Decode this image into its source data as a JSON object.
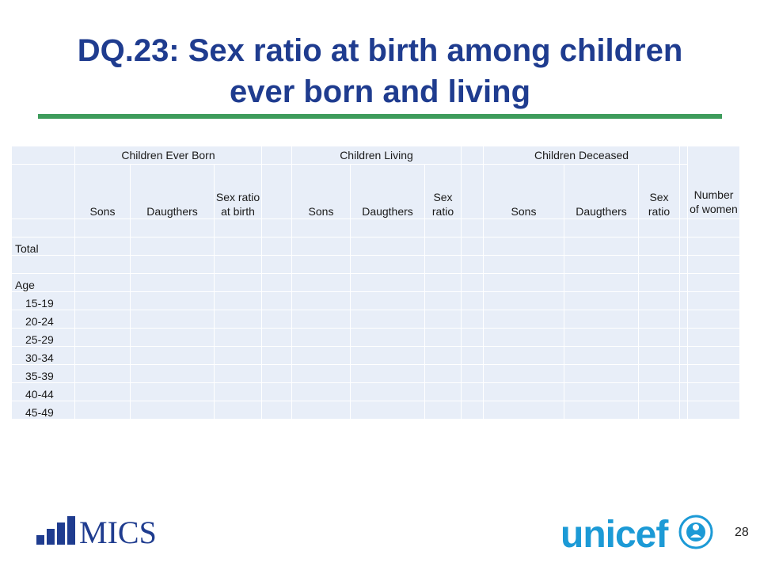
{
  "title": {
    "line1": "DQ.23: Sex ratio at birth among children",
    "line2": "ever born and living"
  },
  "table": {
    "groups": {
      "ever_born": "Children Ever Born",
      "living": "Children Living",
      "deceased": "Children Deceased"
    },
    "subheaders": {
      "sons": "Sons",
      "daughters": "Daugthers",
      "ratio_birth": "Sex ratio at birth",
      "ratio": "Sex ratio",
      "women": "Number of women"
    },
    "rows": {
      "total": "Total",
      "age": "Age",
      "ages": [
        "15-19",
        "20-24",
        "25-29",
        "30-34",
        "35-39",
        "40-44",
        "45-49"
      ]
    }
  },
  "footer": {
    "mics_logo": "MICS",
    "unicef_logo": "unicef",
    "page_number": "28"
  },
  "colors": {
    "title": "#1f3c8f",
    "rule": "#3e9c5c",
    "cell": "#e8eef8",
    "unicef": "#1c9ad6",
    "mics": "#1f3c8f"
  }
}
